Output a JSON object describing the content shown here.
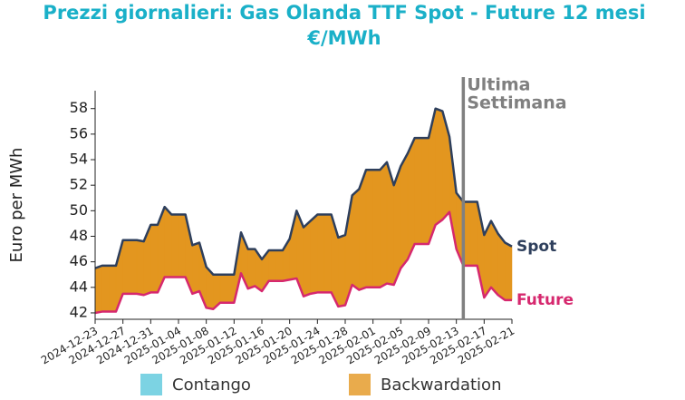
{
  "chart_data": {
    "type": "spread-line",
    "title": [
      "Prezzi giornalieri: Gas Olanda TTF Spot - Future 12 mesi",
      "€/MWh"
    ],
    "y_label": "Euro per MWh",
    "x": [
      "2024-12-23",
      "2024-12-24",
      "2024-12-25",
      "2024-12-26",
      "2024-12-27",
      "2024-12-28",
      "2024-12-29",
      "2024-12-30",
      "2024-12-31",
      "2025-01-01",
      "2025-01-02",
      "2025-01-03",
      "2025-01-04",
      "2025-01-05",
      "2025-01-06",
      "2025-01-07",
      "2025-01-08",
      "2025-01-09",
      "2025-01-10",
      "2025-01-11",
      "2025-01-12",
      "2025-01-13",
      "2025-01-14",
      "2025-01-15",
      "2025-01-16",
      "2025-01-17",
      "2025-01-18",
      "2025-01-19",
      "2025-01-20",
      "2025-01-21",
      "2025-01-22",
      "2025-01-23",
      "2025-01-24",
      "2025-01-25",
      "2025-01-26",
      "2025-01-27",
      "2025-01-28",
      "2025-01-29",
      "2025-01-30",
      "2025-01-31",
      "2025-02-01",
      "2025-02-02",
      "2025-02-03",
      "2025-02-04",
      "2025-02-05",
      "2025-02-06",
      "2025-02-07",
      "2025-02-08",
      "2025-02-09",
      "2025-02-10",
      "2025-02-11",
      "2025-02-12",
      "2025-02-13",
      "2025-02-14",
      "2025-02-15",
      "2025-02-16",
      "2025-02-17",
      "2025-02-18",
      "2025-02-19",
      "2025-02-20",
      "2025-02-21"
    ],
    "series": [
      {
        "name": "Spot",
        "color": "#2e3f5c",
        "values": [
          45.5,
          45.7,
          45.7,
          45.7,
          47.7,
          47.7,
          47.7,
          47.6,
          48.9,
          48.9,
          50.3,
          49.7,
          49.7,
          49.7,
          47.3,
          47.5,
          45.6,
          45.0,
          45.0,
          45.0,
          45.0,
          48.3,
          47.0,
          47.0,
          46.2,
          46.9,
          46.9,
          46.9,
          47.8,
          50.0,
          48.7,
          49.2,
          49.7,
          49.7,
          49.7,
          47.9,
          48.1,
          51.2,
          51.7,
          53.2,
          53.2,
          53.2,
          53.8,
          52.0,
          53.5,
          54.5,
          55.7,
          55.7,
          55.7,
          58.0,
          57.8,
          55.8,
          51.4,
          50.7,
          50.7,
          50.7,
          48.1,
          49.2,
          48.2,
          47.5,
          47.2
        ]
      },
      {
        "name": "Future",
        "color": "#d6286e",
        "values": [
          42.0,
          42.1,
          42.1,
          42.1,
          43.5,
          43.5,
          43.5,
          43.4,
          43.6,
          43.6,
          44.8,
          44.8,
          44.8,
          44.8,
          43.5,
          43.7,
          42.4,
          42.3,
          42.8,
          42.8,
          42.8,
          45.1,
          43.9,
          44.1,
          43.7,
          44.5,
          44.5,
          44.5,
          44.6,
          44.7,
          43.3,
          43.5,
          43.6,
          43.6,
          43.6,
          42.5,
          42.6,
          44.2,
          43.8,
          44.0,
          44.0,
          44.0,
          44.3,
          44.2,
          45.5,
          46.2,
          47.4,
          47.4,
          47.4,
          48.9,
          49.3,
          49.9,
          47.0,
          45.7,
          45.7,
          45.7,
          43.2,
          44.0,
          43.4,
          43.0,
          43.0
        ]
      }
    ],
    "spread_legend": [
      {
        "name": "Contango",
        "color": "#5bc8dc"
      },
      {
        "name": "Backwardation",
        "color": "#e3961f"
      }
    ],
    "xlim": [
      "2024-12-23",
      "2025-02-21"
    ],
    "xticks": [
      "2024-12-23",
      "2024-12-27",
      "2024-12-31",
      "2025-01-04",
      "2025-01-08",
      "2025-01-12",
      "2025-01-16",
      "2025-01-20",
      "2025-01-24",
      "2025-01-28",
      "2025-02-01",
      "2025-02-05",
      "2025-02-09",
      "2025-02-13",
      "2025-02-17",
      "2025-02-21"
    ],
    "ylim": [
      41.5,
      59.4
    ],
    "yticks": [
      42,
      44,
      46,
      48,
      50,
      52,
      54,
      56,
      58
    ],
    "marker": {
      "x": "2025-02-14",
      "label": [
        "Ultima",
        "Settimana"
      ],
      "color": "#808080"
    }
  }
}
